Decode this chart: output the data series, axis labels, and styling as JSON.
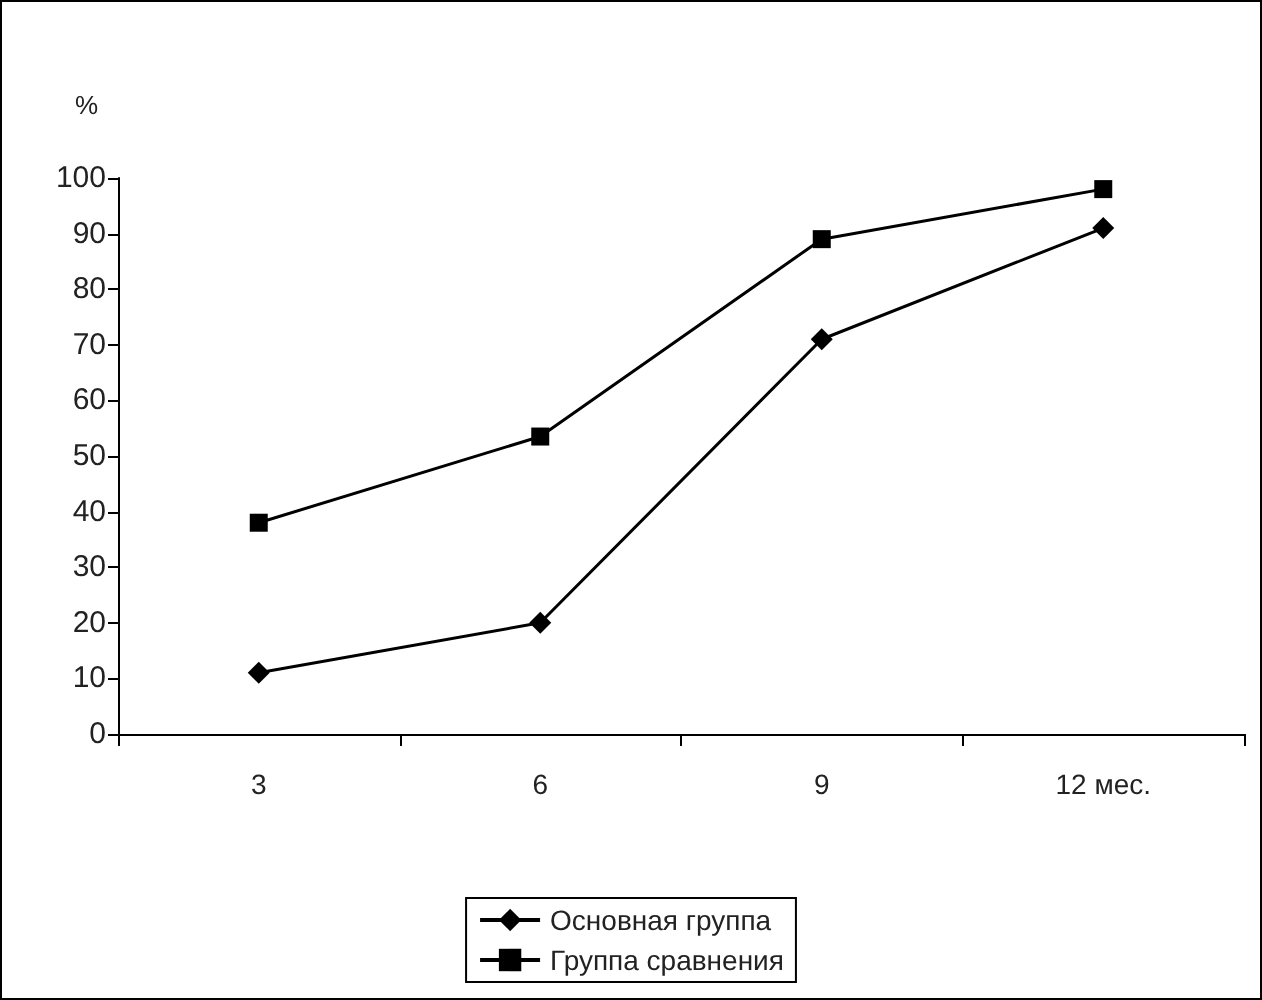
{
  "chart_data": {
    "type": "line",
    "ylabel": "%",
    "categories": [
      "3",
      "6",
      "9",
      "12 мес."
    ],
    "series": [
      {
        "name": "Основная группа",
        "color": "#000000",
        "values": [
          11,
          20,
          71,
          91
        ],
        "marker": "diamond"
      },
      {
        "name": "Группа сравнения",
        "color": "#000000",
        "values": [
          38,
          53.5,
          89,
          98
        ],
        "marker": "square"
      }
    ],
    "ylim": [
      0,
      100
    ],
    "yticks": [
      0,
      10,
      20,
      30,
      40,
      50,
      60,
      70,
      80,
      90,
      100
    ],
    "grid": false,
    "legend": "bottom",
    "line_style": "solid"
  }
}
